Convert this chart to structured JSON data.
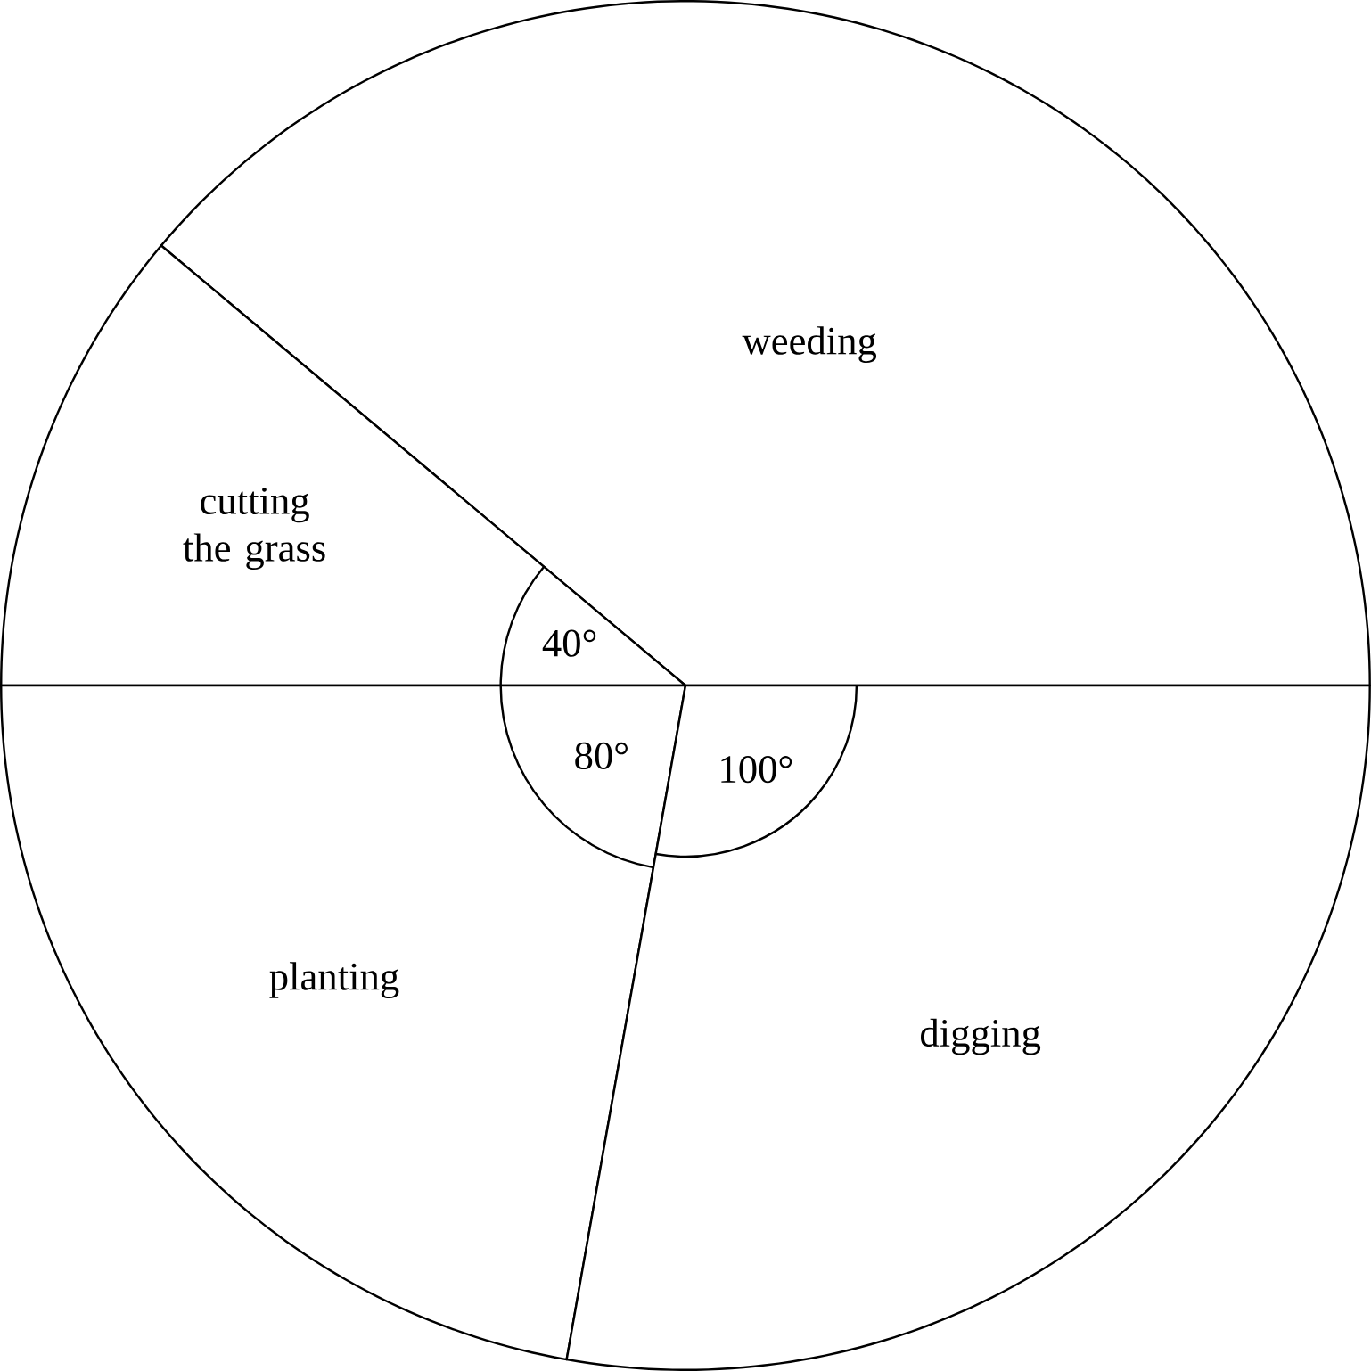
{
  "chart_data": {
    "type": "pie",
    "categories": [
      "weeding",
      "cutting the grass",
      "planting",
      "digging"
    ],
    "values": [
      140,
      40,
      80,
      100
    ],
    "colors": [
      "#ffffff",
      "#ffffff",
      "#ffffff",
      "#ffffff"
    ],
    "value_labels": [
      null,
      "40°",
      "80°",
      "100°"
    ]
  }
}
